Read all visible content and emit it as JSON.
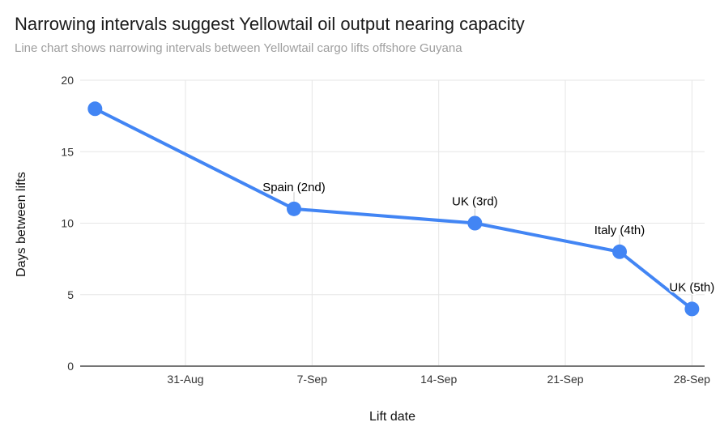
{
  "header": {
    "title": "Narrowing intervals suggest Yellowtail oil output nearing capacity",
    "subtitle": "Line chart shows narrowing intervals between Yellowtail cargo lifts offshore Guyana"
  },
  "chart_data": {
    "type": "line",
    "title": "Narrowing intervals suggest Yellowtail oil output nearing capacity",
    "subtitle": "Line chart shows narrowing intervals between Yellowtail cargo lifts offshore Guyana",
    "xlabel": "Lift date",
    "ylabel": "Days between lifts",
    "ylim": [
      0,
      20
    ],
    "y_ticks": [
      0,
      5,
      10,
      15,
      20
    ],
    "xlim_days": [
      -0.82,
      33.7
    ],
    "x_ticks": [
      {
        "label": "31-Aug",
        "day": 5
      },
      {
        "label": "7-Sep",
        "day": 12
      },
      {
        "label": "14-Sep",
        "day": 19
      },
      {
        "label": "21-Sep",
        "day": 26
      },
      {
        "label": "28-Sep",
        "day": 33
      }
    ],
    "grid": true,
    "legend": "none",
    "series": [
      {
        "name": "Days between lifts",
        "color": "#4285f4",
        "points": [
          {
            "date": "26-Aug",
            "day": 0,
            "value": 18,
            "annotation": ""
          },
          {
            "date": "6-Sep",
            "day": 11,
            "value": 11,
            "annotation": "Spain (2nd)"
          },
          {
            "date": "16-Sep",
            "day": 21,
            "value": 10,
            "annotation": "UK (3rd)"
          },
          {
            "date": "24-Sep",
            "day": 29,
            "value": 8,
            "annotation": "Italy (4th)"
          },
          {
            "date": "28-Sep",
            "day": 33,
            "value": 4,
            "annotation": "UK (5th)"
          }
        ]
      }
    ],
    "colors": {
      "line": "#4285f4",
      "gridline": "#e6e6e6",
      "axis_line": "#757575",
      "tick_label": "#333333",
      "annotation": "#000000",
      "annotation_stem": "#c8c8c8",
      "title": "#1a1a1a",
      "subtitle": "#9e9e9e"
    }
  }
}
